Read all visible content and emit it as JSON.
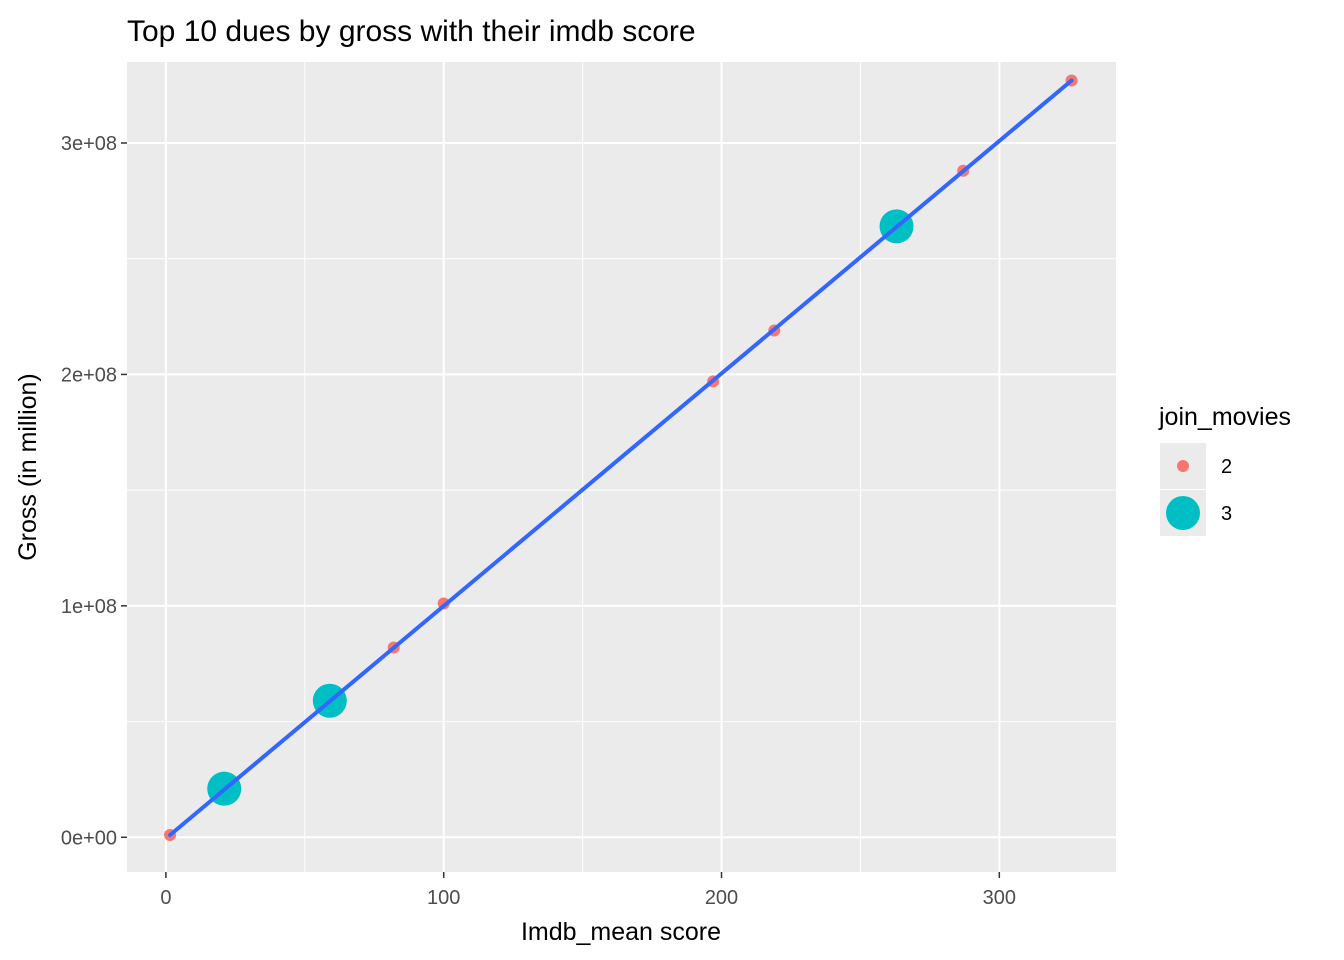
{
  "chart_data": {
    "type": "scatter",
    "title": "Top 10 dues by gross with their imdb score",
    "xlabel": "Imdb_mean score",
    "ylabel": "Gross (in million)",
    "xlim": [
      -14,
      342
    ],
    "ylim": [
      -15000000,
      335000000
    ],
    "x_major_ticks": [
      0,
      100,
      200,
      300
    ],
    "x_minor_ticks": [
      50,
      150,
      250
    ],
    "x_tick_labels": [
      "0",
      "100",
      "200",
      "300"
    ],
    "y_major_ticks": [
      0,
      100000000,
      200000000,
      300000000
    ],
    "y_minor_ticks": [
      50000000,
      150000000,
      250000000
    ],
    "y_tick_labels": [
      "0e+00",
      "1e+08",
      "2e+08",
      "3e+08"
    ],
    "grid": true,
    "legend": {
      "title": "join_movies",
      "placement": "right",
      "entries": [
        {
          "label": "2",
          "color": "#F8766D",
          "size": "small"
        },
        {
          "label": "3",
          "color": "#00BFC4",
          "size": "large"
        }
      ]
    },
    "series": [
      {
        "group": "2",
        "color": "#F8766D",
        "points": [
          {
            "x": 1.5,
            "y": 1000000
          },
          {
            "x": 82,
            "y": 82000000
          },
          {
            "x": 100,
            "y": 101000000
          },
          {
            "x": 197,
            "y": 197000000
          },
          {
            "x": 219,
            "y": 219000000
          },
          {
            "x": 287,
            "y": 288000000
          },
          {
            "x": 326,
            "y": 327000000
          }
        ]
      },
      {
        "group": "3",
        "color": "#00BFC4",
        "points": [
          {
            "x": 21,
            "y": 21000000
          },
          {
            "x": 59,
            "y": 59000000
          },
          {
            "x": 263,
            "y": 264000000
          }
        ]
      }
    ],
    "trend_line": {
      "color": "#3366FF",
      "x": [
        1.5,
        326
      ],
      "y": [
        1000000,
        327000000
      ]
    },
    "colors": {
      "panel_background": "#EBEBEB",
      "grid": "#FFFFFF",
      "tick_label": "#4D4D4D"
    }
  }
}
